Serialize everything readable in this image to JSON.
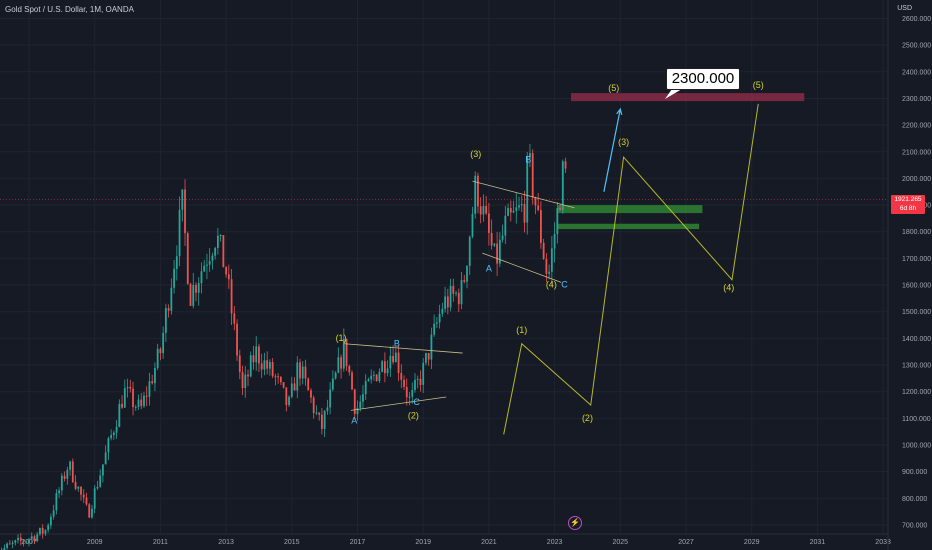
{
  "header": {
    "title": "Gold Spot / U.S. Dollar, 1M, OANDA",
    "currency": "USD"
  },
  "current_price": {
    "value": "1921.265",
    "countdown": "6d 8h"
  },
  "target_callout": "2300.000",
  "colors": {
    "bg": "#161a25",
    "up": "#26a69a",
    "down": "#ef5350",
    "wave_yellow": "#d4d42a",
    "abc_cyan": "#4fc3f7",
    "target_zone": "#8a2a47",
    "support_zone": "#2e7d32",
    "price_line": "#f23645"
  },
  "icons": {
    "replay": "flash-icon"
  },
  "chart_data": {
    "type": "candlestick",
    "title": "Gold Spot / U.S. Dollar, 1M, OANDA",
    "ylim": [
      700,
      2600
    ],
    "y_ticks": [
      "2600.000",
      "2500.000",
      "2400.000",
      "2300.000",
      "2200.000",
      "2100.000",
      "2000.000",
      "1900.000",
      "1800.000",
      "1700.000",
      "1600.000",
      "1500.000",
      "1400.000",
      "1300.000",
      "1200.000",
      "1100.000",
      "1000.000",
      "900.000",
      "800.000",
      "700.000"
    ],
    "x_ticks": [
      "2007",
      "2009",
      "2011",
      "2013",
      "2015",
      "2017",
      "2019",
      "2021",
      "2023",
      "2025",
      "2027",
      "2029",
      "2031",
      "2033"
    ],
    "anchors": [
      [
        2006.0,
        600
      ],
      [
        2007.0,
        650
      ],
      [
        2007.5,
        680
      ],
      [
        2008.2,
        930
      ],
      [
        2008.8,
        740
      ],
      [
        2009.9,
        1200
      ],
      [
        2010.4,
        1130
      ],
      [
        2011.0,
        1350
      ],
      [
        2011.67,
        1900
      ],
      [
        2011.9,
        1560
      ],
      [
        2012.7,
        1790
      ],
      [
        2013.0,
        1650
      ],
      [
        2013.5,
        1200
      ],
      [
        2013.9,
        1350
      ],
      [
        2014.5,
        1250
      ],
      [
        2014.9,
        1140
      ],
      [
        2015.2,
        1300
      ],
      [
        2015.9,
        1060
      ],
      [
        2016.6,
        1370
      ],
      [
        2016.95,
        1130
      ],
      [
        2017.5,
        1260
      ],
      [
        2018.1,
        1360
      ],
      [
        2018.6,
        1160
      ],
      [
        2019.0,
        1280
      ],
      [
        2019.6,
        1530
      ],
      [
        2020.2,
        1580
      ],
      [
        2020.6,
        1980
      ],
      [
        2021.2,
        1680
      ],
      [
        2021.5,
        1820
      ],
      [
        2022.1,
        1900
      ],
      [
        2022.2,
        2070
      ],
      [
        2022.8,
        1620
      ],
      [
        2023.3,
        2060
      ],
      [
        2023.4,
        1921
      ]
    ],
    "current_price": 1921.265,
    "target_zone": {
      "x0": 2023.5,
      "x1": 2030.6,
      "low": 2290,
      "high": 2320,
      "label": "(5)"
    },
    "support_zones": [
      {
        "x0": 2023.1,
        "x1": 2027.5,
        "low": 1870,
        "high": 1900
      },
      {
        "x0": 2023.1,
        "x1": 2027.4,
        "low": 1810,
        "high": 1830
      }
    ],
    "projection": {
      "points": [
        [
          2024.5,
          1950
        ],
        [
          2025.0,
          2260
        ]
      ]
    },
    "future_wave": {
      "points": [
        [
          2021.45,
          1040
        ],
        [
          2022.0,
          1380
        ],
        [
          2024.1,
          1150
        ],
        [
          2025.1,
          2080
        ],
        [
          2028.4,
          1620
        ],
        [
          2029.2,
          2280
        ]
      ],
      "labels": [
        {
          "t": "(1)",
          "x": 2022.0,
          "y": 1420
        },
        {
          "t": "(2)",
          "x": 2024.0,
          "y": 1090
        },
        {
          "t": "(3)",
          "x": 2025.1,
          "y": 2125
        },
        {
          "t": "(4)",
          "x": 2028.3,
          "y": 1580
        },
        {
          "t": "(5)",
          "x": 2029.2,
          "y": 2340
        }
      ]
    },
    "trend_lines": [
      [
        [
          2016.6,
          1380
        ],
        [
          2020.2,
          1345
        ]
      ],
      [
        [
          2016.8,
          1130
        ],
        [
          2019.7,
          1180
        ]
      ],
      [
        [
          2020.5,
          1990
        ],
        [
          2023.6,
          1890
        ]
      ],
      [
        [
          2020.8,
          1720
        ],
        [
          2023.2,
          1610
        ]
      ]
    ],
    "wave_labels": [
      {
        "t": "(1)",
        "x": 2016.5,
        "y": 1390,
        "c": "yellow"
      },
      {
        "t": "B",
        "x": 2018.2,
        "y": 1370,
        "c": "cyan"
      },
      {
        "t": "A",
        "x": 2016.9,
        "y": 1080,
        "c": "cyan"
      },
      {
        "t": "C",
        "x": 2018.8,
        "y": 1150,
        "c": "cyan"
      },
      {
        "t": "(2)",
        "x": 2018.7,
        "y": 1100,
        "c": "yellow"
      },
      {
        "t": "(3)",
        "x": 2020.6,
        "y": 2080,
        "c": "yellow"
      },
      {
        "t": "B",
        "x": 2022.2,
        "y": 2060,
        "c": "cyan"
      },
      {
        "t": "A",
        "x": 2021.0,
        "y": 1650,
        "c": "cyan"
      },
      {
        "t": "(4)",
        "x": 2022.9,
        "y": 1590,
        "c": "yellow"
      },
      {
        "t": "C",
        "x": 2023.3,
        "y": 1590,
        "c": "cyan"
      }
    ]
  }
}
